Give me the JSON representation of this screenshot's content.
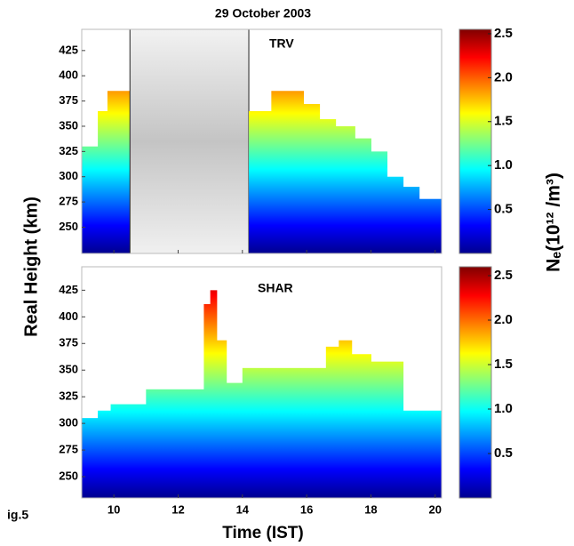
{
  "figure": {
    "title": "29 October  2003",
    "ylabel": "Real Height  (km)",
    "xlabel": "Time (IST)",
    "colorbar_label": "Nₑ(10¹² /m³)",
    "caption": "ig.5"
  },
  "chart_data": [
    {
      "type": "area",
      "label": "TRV",
      "step": true,
      "x": [
        9,
        9.5,
        9.8,
        10.5,
        14.2,
        14.9,
        15.9,
        16.4,
        16.9,
        17.5,
        18,
        18.5,
        19,
        19.5
      ],
      "values": [
        330,
        365,
        385,
        null,
        365,
        385,
        372,
        357,
        350,
        338,
        325,
        300,
        290,
        278
      ],
      "xlim": [
        9,
        20.2
      ],
      "ylim": [
        224,
        446
      ],
      "xticks": [
        10,
        12,
        14,
        16,
        18,
        20
      ],
      "show_xticklabels": false,
      "yticks": [
        250,
        275,
        300,
        325,
        350,
        375,
        400,
        425
      ],
      "colormap": [
        "#00008f",
        "#0000ff",
        "#0080ff",
        "#00ffff",
        "#80ff80",
        "#ffff00",
        "#ff8000",
        "#ff0000",
        "#800000"
      ],
      "clim": [
        0,
        2.55
      ],
      "cticks": [
        0.5,
        {
          "value": 1,
          "label": "1.0"
        },
        1.5,
        {
          "value": 2,
          "label": "2.0"
        },
        2.5
      ]
    },
    {
      "type": "area",
      "label": "SHAR",
      "step": true,
      "x": [
        9,
        9.5,
        9.9,
        11,
        12.8,
        13,
        13.2,
        13.5,
        14,
        16.6,
        17,
        17.4,
        18,
        19
      ],
      "values": [
        305,
        312,
        318,
        332,
        412,
        425,
        378,
        338,
        352,
        372,
        378,
        365,
        358,
        312
      ],
      "xlim": [
        9,
        20.2
      ],
      "ylim": [
        230,
        447
      ],
      "xticks": [
        10,
        12,
        14,
        16,
        18,
        20
      ],
      "show_xticklabels": true,
      "yticks": [
        250,
        275,
        300,
        325,
        350,
        375,
        400,
        425
      ],
      "colormap": [
        "#00008f",
        "#0000ff",
        "#0080ff",
        "#00ffff",
        "#80ff80",
        "#ffff00",
        "#ff8000",
        "#ff0000",
        "#800000"
      ],
      "clim": [
        0,
        2.6
      ],
      "cticks": [
        0.5,
        {
          "value": 1,
          "label": "1.0"
        },
        1.5,
        {
          "value": 2,
          "label": "2.0"
        },
        2.5
      ]
    }
  ]
}
